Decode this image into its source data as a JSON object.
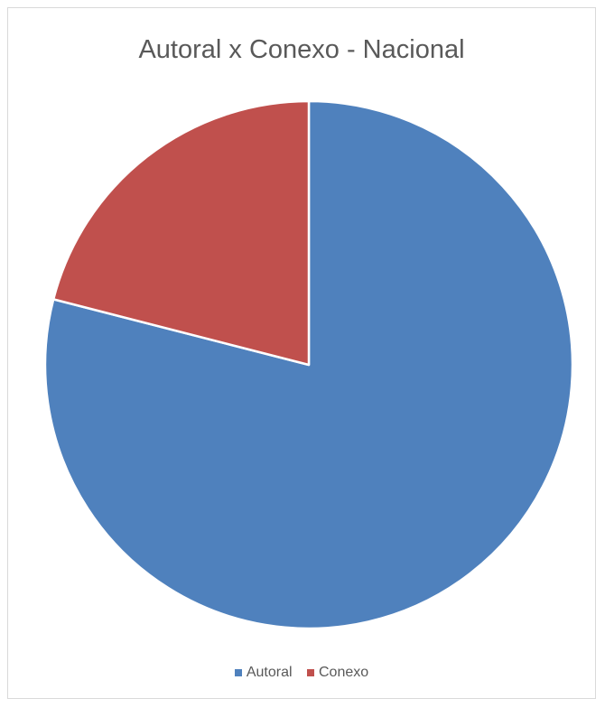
{
  "chart_data": {
    "type": "pie",
    "title": "Autoral x Conexo - Nacional",
    "series": [
      {
        "name": "Autoral",
        "value": 79,
        "color": "#4f81bd"
      },
      {
        "name": "Conexo",
        "value": 21,
        "color": "#c0504d"
      }
    ],
    "start_angle_deg": 0,
    "direction": "clockwise",
    "legend_placement": "bottom"
  }
}
